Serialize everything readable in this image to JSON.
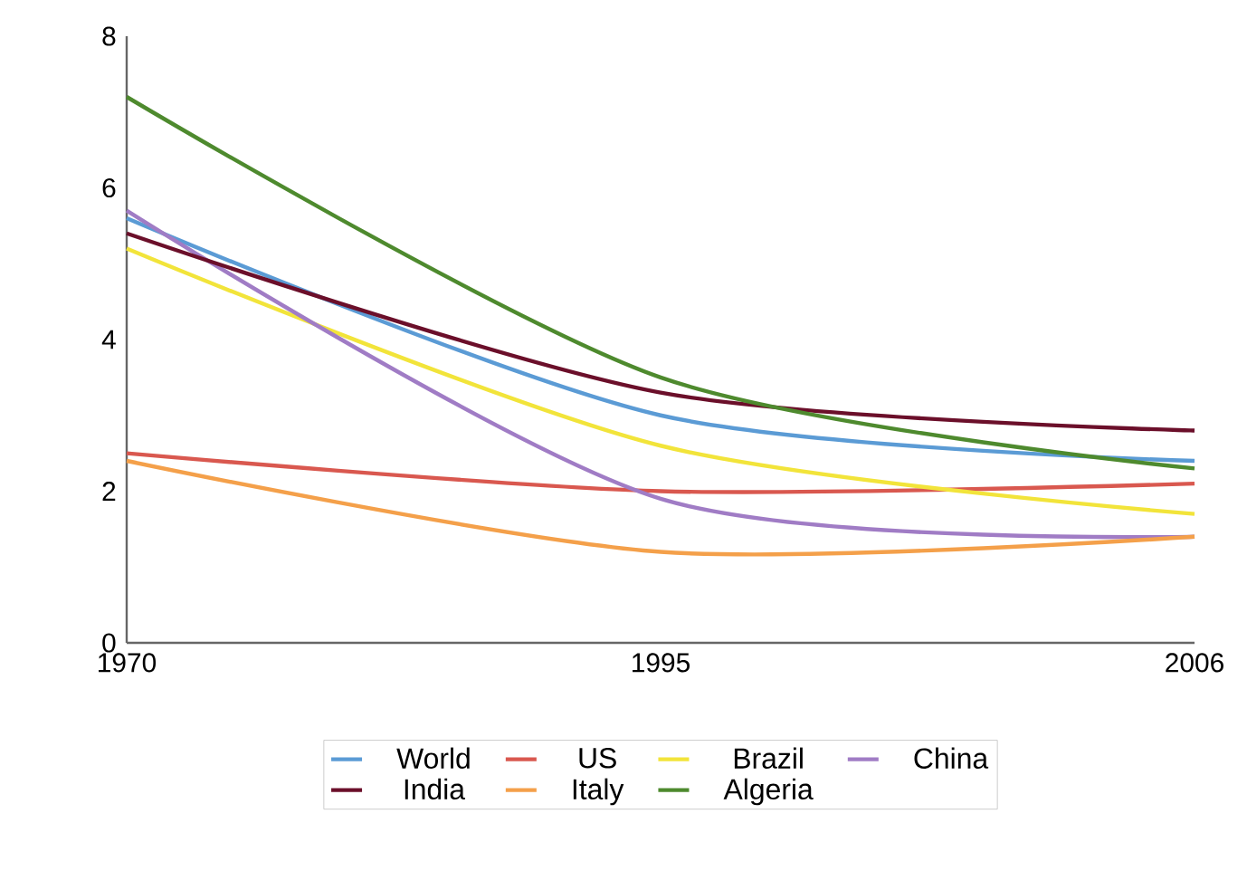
{
  "chart_data": {
    "type": "line",
    "categories": [
      "1970",
      "1995",
      "2006"
    ],
    "series": [
      {
        "name": "World",
        "color": "#5b9bd5",
        "values": [
          5.6,
          3.0,
          2.4
        ]
      },
      {
        "name": "US",
        "color": "#d9584f",
        "values": [
          2.5,
          2.0,
          2.1
        ]
      },
      {
        "name": "Brazil",
        "color": "#f2e43a",
        "values": [
          5.2,
          2.6,
          1.7
        ]
      },
      {
        "name": "China",
        "color": "#a07cc5",
        "values": [
          5.7,
          1.9,
          1.4
        ]
      },
      {
        "name": "India",
        "color": "#6b0f2a",
        "values": [
          5.4,
          3.3,
          2.8
        ]
      },
      {
        "name": "Italy",
        "color": "#f4a04a",
        "values": [
          2.4,
          1.2,
          1.4
        ]
      },
      {
        "name": "Algeria",
        "color": "#4e8a2e",
        "values": [
          7.2,
          3.5,
          2.3
        ]
      }
    ],
    "ylim": [
      0,
      8
    ],
    "yticks": [
      0,
      2,
      4,
      6,
      8
    ],
    "grid": false,
    "legend": "bottom",
    "marker": "none",
    "line_style": "solid"
  }
}
